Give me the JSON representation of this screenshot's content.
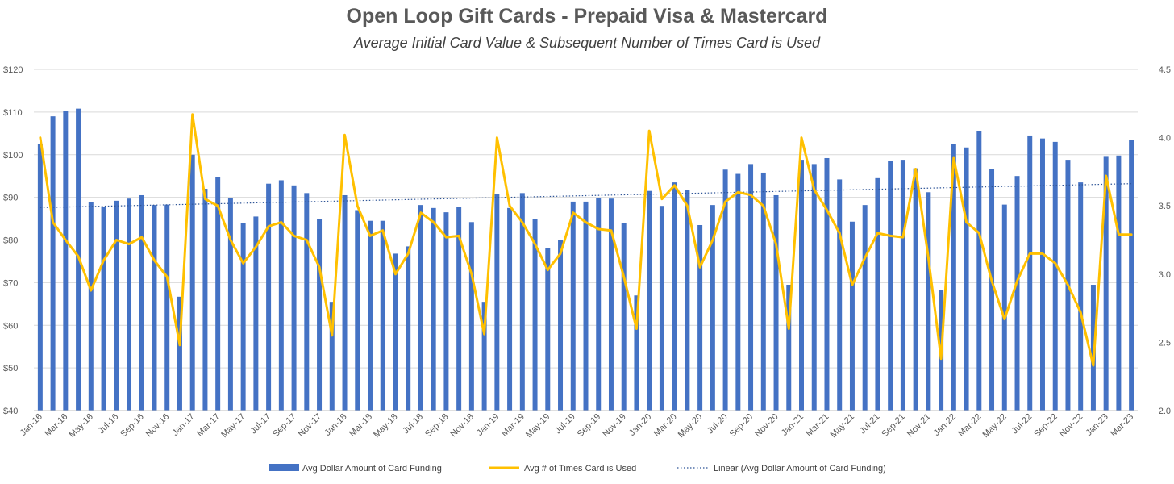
{
  "chart_data": {
    "type": "bar",
    "title": "Open Loop Gift Cards - Prepaid Visa & Mastercard",
    "subtitle": "Average Initial Card Value & Subsequent Number of Times Card is Used",
    "categories": [
      "Jan-16",
      "Feb-16",
      "Mar-16",
      "Apr-16",
      "May-16",
      "Jun-16",
      "Jul-16",
      "Aug-16",
      "Sep-16",
      "Oct-16",
      "Nov-16",
      "Dec-16",
      "Jan-17",
      "Feb-17",
      "Mar-17",
      "Apr-17",
      "May-17",
      "Jun-17",
      "Jul-17",
      "Aug-17",
      "Sep-17",
      "Oct-17",
      "Nov-17",
      "Dec-17",
      "Jan-18",
      "Feb-18",
      "Mar-18",
      "Apr-18",
      "May-18",
      "Jun-18",
      "Jul-18",
      "Aug-18",
      "Sep-18",
      "Oct-18",
      "Nov-18",
      "Dec-18",
      "Jan-19",
      "Feb-19",
      "Mar-19",
      "Apr-19",
      "May-19",
      "Jun-19",
      "Jul-19",
      "Aug-19",
      "Sep-19",
      "Oct-19",
      "Nov-19",
      "Dec-19",
      "Jan-20",
      "Feb-20",
      "Mar-20",
      "Apr-20",
      "May-20",
      "Jun-20",
      "Jul-20",
      "Aug-20",
      "Sep-20",
      "Oct-20",
      "Nov-20",
      "Dec-20",
      "Jan-21",
      "Feb-21",
      "Mar-21",
      "Apr-21",
      "May-21",
      "Jun-21",
      "Jul-21",
      "Aug-21",
      "Sep-21",
      "Oct-21",
      "Nov-21",
      "Dec-21",
      "Jan-22",
      "Feb-22",
      "Mar-22",
      "Apr-22",
      "May-22",
      "Jun-22",
      "Jul-22",
      "Aug-22",
      "Sep-22",
      "Oct-22",
      "Nov-22",
      "Dec-22",
      "Jan-23",
      "Feb-23",
      "Mar-23"
    ],
    "x_tick_labels": [
      "Jan-16",
      "Mar-16",
      "May-16",
      "Jul-16",
      "Sep-16",
      "Nov-16",
      "Jan-17",
      "Mar-17",
      "May-17",
      "Jul-17",
      "Sep-17",
      "Nov-17",
      "Jan-18",
      "Mar-18",
      "May-18",
      "Jul-18",
      "Sep-18",
      "Nov-18",
      "Jan-19",
      "Mar-19",
      "May-19",
      "Jul-19",
      "Sep-19",
      "Nov-19",
      "Jan-20",
      "Mar-20",
      "May-20",
      "Jul-20",
      "Sep-20",
      "Nov-20",
      "Jan-21",
      "Mar-21",
      "May-21",
      "Jul-21",
      "Sep-21",
      "Nov-21",
      "Jan-22",
      "Mar-22",
      "May-22",
      "Jul-22",
      "Sep-22",
      "Nov-22",
      "Jan-23",
      "Mar-23"
    ],
    "series": [
      {
        "name": "Avg Dollar Amount of Card Funding",
        "type": "bar",
        "axis": "left",
        "color": "#4472C4",
        "values": [
          102.5,
          109,
          110.3,
          110.8,
          88.8,
          87.7,
          89.2,
          89.7,
          90.5,
          88.2,
          88.3,
          66.7,
          100,
          92,
          94.8,
          89.8,
          84,
          85.5,
          93.2,
          94,
          92.8,
          91,
          85,
          65.5,
          90.5,
          87,
          84.5,
          84.5,
          76.8,
          78.5,
          88.2,
          87.5,
          86.5,
          87.7,
          84.2,
          65.5,
          90.8,
          87.5,
          91,
          85,
          78.2,
          80,
          89,
          89,
          89.8,
          89.7,
          84,
          67,
          91.5,
          88,
          93.5,
          91.8,
          83.5,
          88.2,
          96.5,
          95.5,
          97.8,
          95.8,
          90.5,
          69.5,
          98.8,
          97.8,
          99.2,
          94.2,
          84.3,
          88.2,
          94.5,
          98.5,
          98.8,
          96.8,
          91.2,
          68.2,
          102.5,
          101.7,
          105.5,
          96.7,
          88.3,
          95,
          104.5,
          103.8,
          103,
          98.8,
          93.5,
          69.5,
          99.5,
          99.8,
          103.5
        ]
      },
      {
        "name": "Avg # of Times Card is Used",
        "type": "line",
        "axis": "right",
        "color": "#FFC000",
        "values": [
          4.0,
          3.38,
          3.25,
          3.13,
          2.88,
          3.1,
          3.25,
          3.22,
          3.27,
          3.1,
          2.98,
          2.48,
          4.17,
          3.55,
          3.5,
          3.25,
          3.08,
          3.2,
          3.35,
          3.38,
          3.28,
          3.25,
          3.05,
          2.55,
          4.02,
          3.5,
          3.28,
          3.32,
          3.0,
          3.15,
          3.45,
          3.38,
          3.27,
          3.28,
          3.0,
          2.56,
          4.0,
          3.5,
          3.38,
          3.22,
          3.03,
          3.15,
          3.45,
          3.38,
          3.33,
          3.32,
          2.98,
          2.6,
          4.05,
          3.55,
          3.65,
          3.5,
          3.05,
          3.25,
          3.53,
          3.6,
          3.58,
          3.5,
          3.22,
          2.6,
          4.0,
          3.62,
          3.47,
          3.3,
          2.92,
          3.12,
          3.3,
          3.28,
          3.27,
          3.77,
          3.12,
          2.38,
          3.85,
          3.38,
          3.3,
          2.95,
          2.67,
          2.95,
          3.15,
          3.15,
          3.08,
          2.92,
          2.72,
          2.33,
          3.72,
          3.29,
          3.29
        ]
      }
    ],
    "trendline": {
      "name": "Linear (Avg Dollar Amount of Card Funding)",
      "of_series": "Avg Dollar Amount of Card Funding",
      "color": "#2F5597",
      "start": 87.6,
      "end": 93.2
    },
    "y_left": {
      "ylim": [
        40,
        120
      ],
      "ticks": [
        40,
        50,
        60,
        70,
        80,
        90,
        100,
        110,
        120
      ],
      "tick_labels": [
        "$40",
        "$50",
        "$60",
        "$70",
        "$80",
        "$90",
        "$100",
        "$110",
        "$120"
      ]
    },
    "y_right": {
      "ylim": [
        2.0,
        4.5
      ],
      "ticks": [
        2.0,
        2.5,
        3.0,
        3.5,
        4.0,
        4.5
      ],
      "tick_labels": [
        "2.0",
        "2.5",
        "3.0",
        "3.5",
        "4.0",
        "4.5"
      ]
    },
    "grid": true,
    "legend": "bottom"
  }
}
